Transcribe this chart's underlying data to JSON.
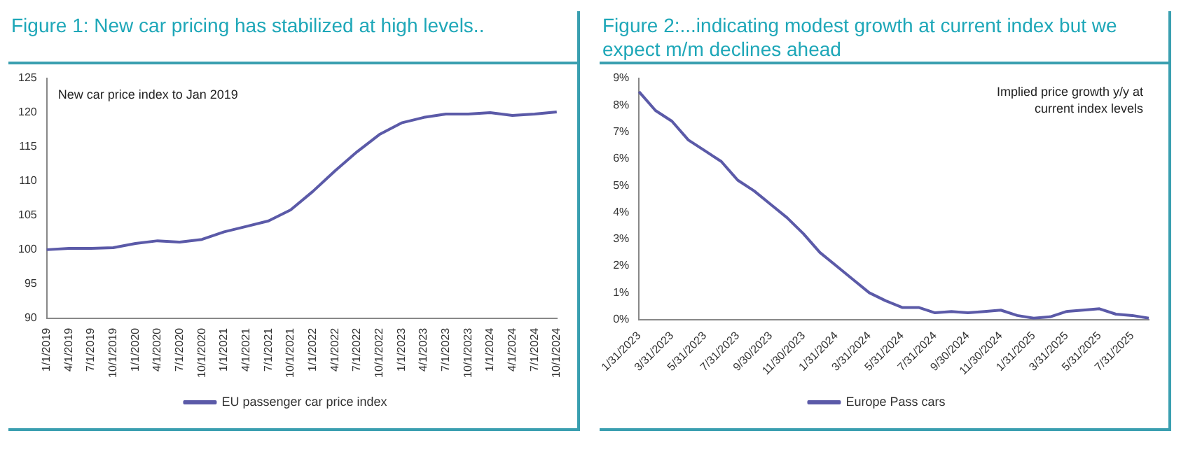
{
  "chart_data": [
    {
      "type": "line",
      "title": "Figure 1: New car pricing has stabilized at high levels..",
      "annotations": [
        "New car price index to Jan 2019"
      ],
      "categories": [
        "1/1/2019",
        "4/1/2019",
        "7/1/2019",
        "10/1/2019",
        "1/1/2020",
        "4/1/2020",
        "7/1/2020",
        "10/1/2020",
        "1/1/2021",
        "4/1/2021",
        "7/1/2021",
        "10/1/2021",
        "1/1/2022",
        "4/1/2022",
        "7/1/2022",
        "10/1/2022",
        "1/1/2023",
        "4/1/2023",
        "7/1/2023",
        "10/1/2023",
        "1/1/2024",
        "4/1/2024",
        "7/1/2024",
        "10/1/2024"
      ],
      "series": [
        {
          "name": "EU passenger car price index",
          "color": "#5b5aa8",
          "values": [
            100,
            100.2,
            100.2,
            100.3,
            100.9,
            101.3,
            101.1,
            101.5,
            102.6,
            103.4,
            104.2,
            105.8,
            108.5,
            111.5,
            114.3,
            116.8,
            118.5,
            119.3,
            119.8,
            119.8,
            120,
            119.6,
            119.8,
            120.1
          ]
        }
      ],
      "ylim": [
        90,
        125
      ],
      "yticks": [
        90,
        95,
        100,
        105,
        110,
        115,
        120,
        125
      ],
      "legend": "bottom",
      "marker": "none"
    },
    {
      "type": "line",
      "title": "Figure 2:...indicating modest growth at current index but we expect m/m declines ahead",
      "annotations": [
        "Implied price growth y/y at current index levels"
      ],
      "categories": [
        "1/31/2023",
        null,
        "3/31/2023",
        null,
        "5/31/2023",
        null,
        "7/31/2023",
        null,
        "9/30/2023",
        null,
        "11/30/2023",
        null,
        "1/31/2024",
        null,
        "3/31/2024",
        null,
        "5/31/2024",
        null,
        "7/31/2024",
        null,
        "9/30/2024",
        null,
        "11/30/2024",
        null,
        "1/31/2025",
        null,
        "3/31/2025",
        null,
        "5/31/2025",
        null,
        "7/31/2025",
        null
      ],
      "series": [
        {
          "name": "Europe Pass cars",
          "color": "#5b5aa8",
          "values": [
            8.5,
            7.8,
            7.4,
            6.7,
            6.3,
            5.9,
            5.2,
            4.8,
            4.3,
            3.8,
            3.2,
            2.5,
            2.0,
            1.5,
            1.0,
            0.7,
            0.45,
            0.45,
            0.25,
            0.3,
            0.25,
            0.3,
            0.35,
            0.15,
            0.05,
            0.1,
            0.3,
            0.35,
            0.4,
            0.2,
            0.15,
            0.05
          ]
        }
      ],
      "ylim": [
        0,
        9
      ],
      "yticks": [
        {
          "value": 0,
          "label": "0%"
        },
        {
          "value": 1,
          "label": "1%"
        },
        {
          "value": 2,
          "label": "2%"
        },
        {
          "value": 3,
          "label": "3%"
        },
        {
          "value": 4,
          "label": "4%"
        },
        {
          "value": 5,
          "label": "5%"
        },
        {
          "value": 6,
          "label": "6%"
        },
        {
          "value": 7,
          "label": "7%"
        },
        {
          "value": 8,
          "label": "8%"
        },
        {
          "value": 9,
          "label": "9%"
        }
      ],
      "legend": "bottom",
      "marker": "none"
    }
  ]
}
